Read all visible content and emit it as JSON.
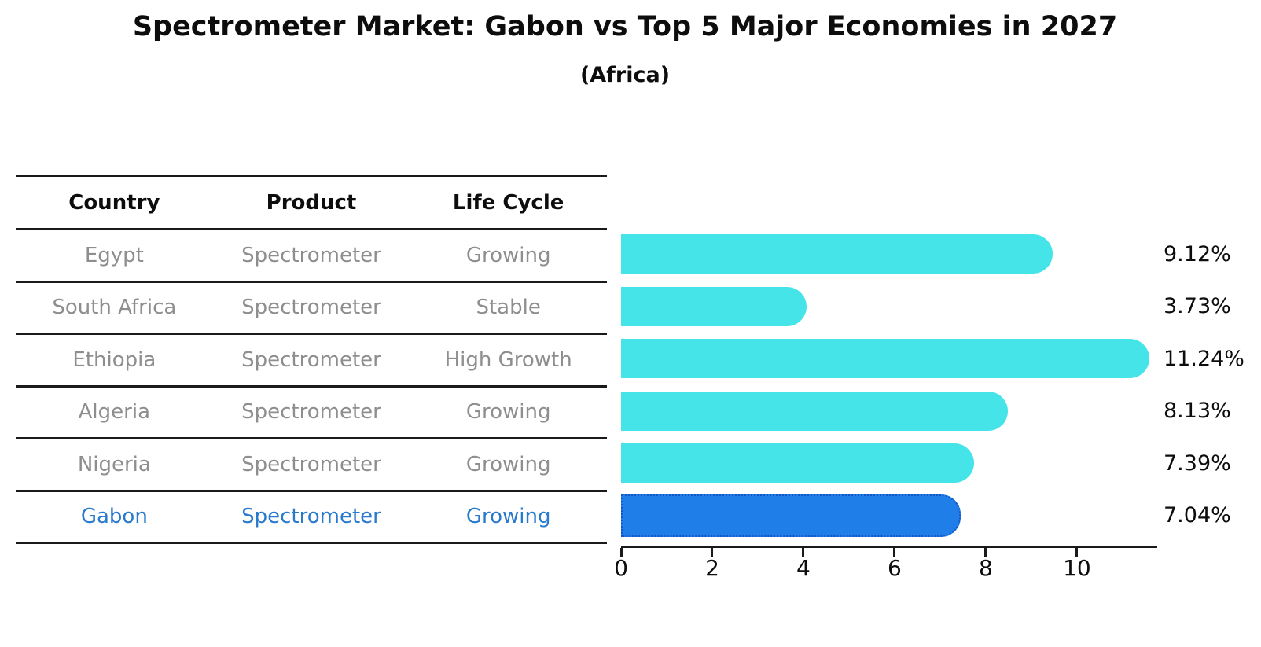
{
  "title": "Spectrometer Market: Gabon vs Top 5 Major Economies in 2027",
  "subtitle": "(Africa)",
  "table": {
    "headers": [
      "Country",
      "Product",
      "Life Cycle"
    ],
    "rows": [
      {
        "country": "Egypt",
        "product": "Spectrometer",
        "life_cycle": "Growing",
        "highlight": false
      },
      {
        "country": "South Africa",
        "product": "Spectrometer",
        "life_cycle": "Stable",
        "highlight": false
      },
      {
        "country": "Ethiopia",
        "product": "Spectrometer",
        "life_cycle": "High Growth",
        "highlight": false
      },
      {
        "country": "Algeria",
        "product": "Spectrometer",
        "life_cycle": "Growing",
        "highlight": false
      },
      {
        "country": "Nigeria",
        "product": "Spectrometer",
        "life_cycle": "Growing",
        "highlight": false
      },
      {
        "country": "Gabon",
        "product": "Spectrometer",
        "life_cycle": "Growing",
        "highlight": true
      }
    ]
  },
  "chart_data": {
    "type": "bar",
    "orientation": "horizontal",
    "title": "Spectrometer Market: Gabon vs Top 5 Major Economies in 2027",
    "subtitle": "(Africa)",
    "categories": [
      "Egypt",
      "South Africa",
      "Ethiopia",
      "Algeria",
      "Nigeria",
      "Gabon"
    ],
    "values": [
      9.12,
      3.73,
      11.24,
      8.13,
      7.39,
      7.04
    ],
    "value_labels": [
      "9.12%",
      "3.73%",
      "11.24%",
      "8.13%",
      "7.39%",
      "7.04%"
    ],
    "unit": "%",
    "x_ticks": [
      0,
      2,
      4,
      6,
      8,
      10
    ],
    "xlim": [
      0,
      11.76
    ],
    "grid": false,
    "legend": "none",
    "highlight_index": 5,
    "bar_color": "#45e4e9",
    "highlight_bar_color": "#1f7ee8",
    "highlight_border_color": "#1356c4",
    "highlight_text_color": "#2979cc",
    "text_color": "#8e8e8e",
    "axis_color": "#1a1a1a"
  }
}
